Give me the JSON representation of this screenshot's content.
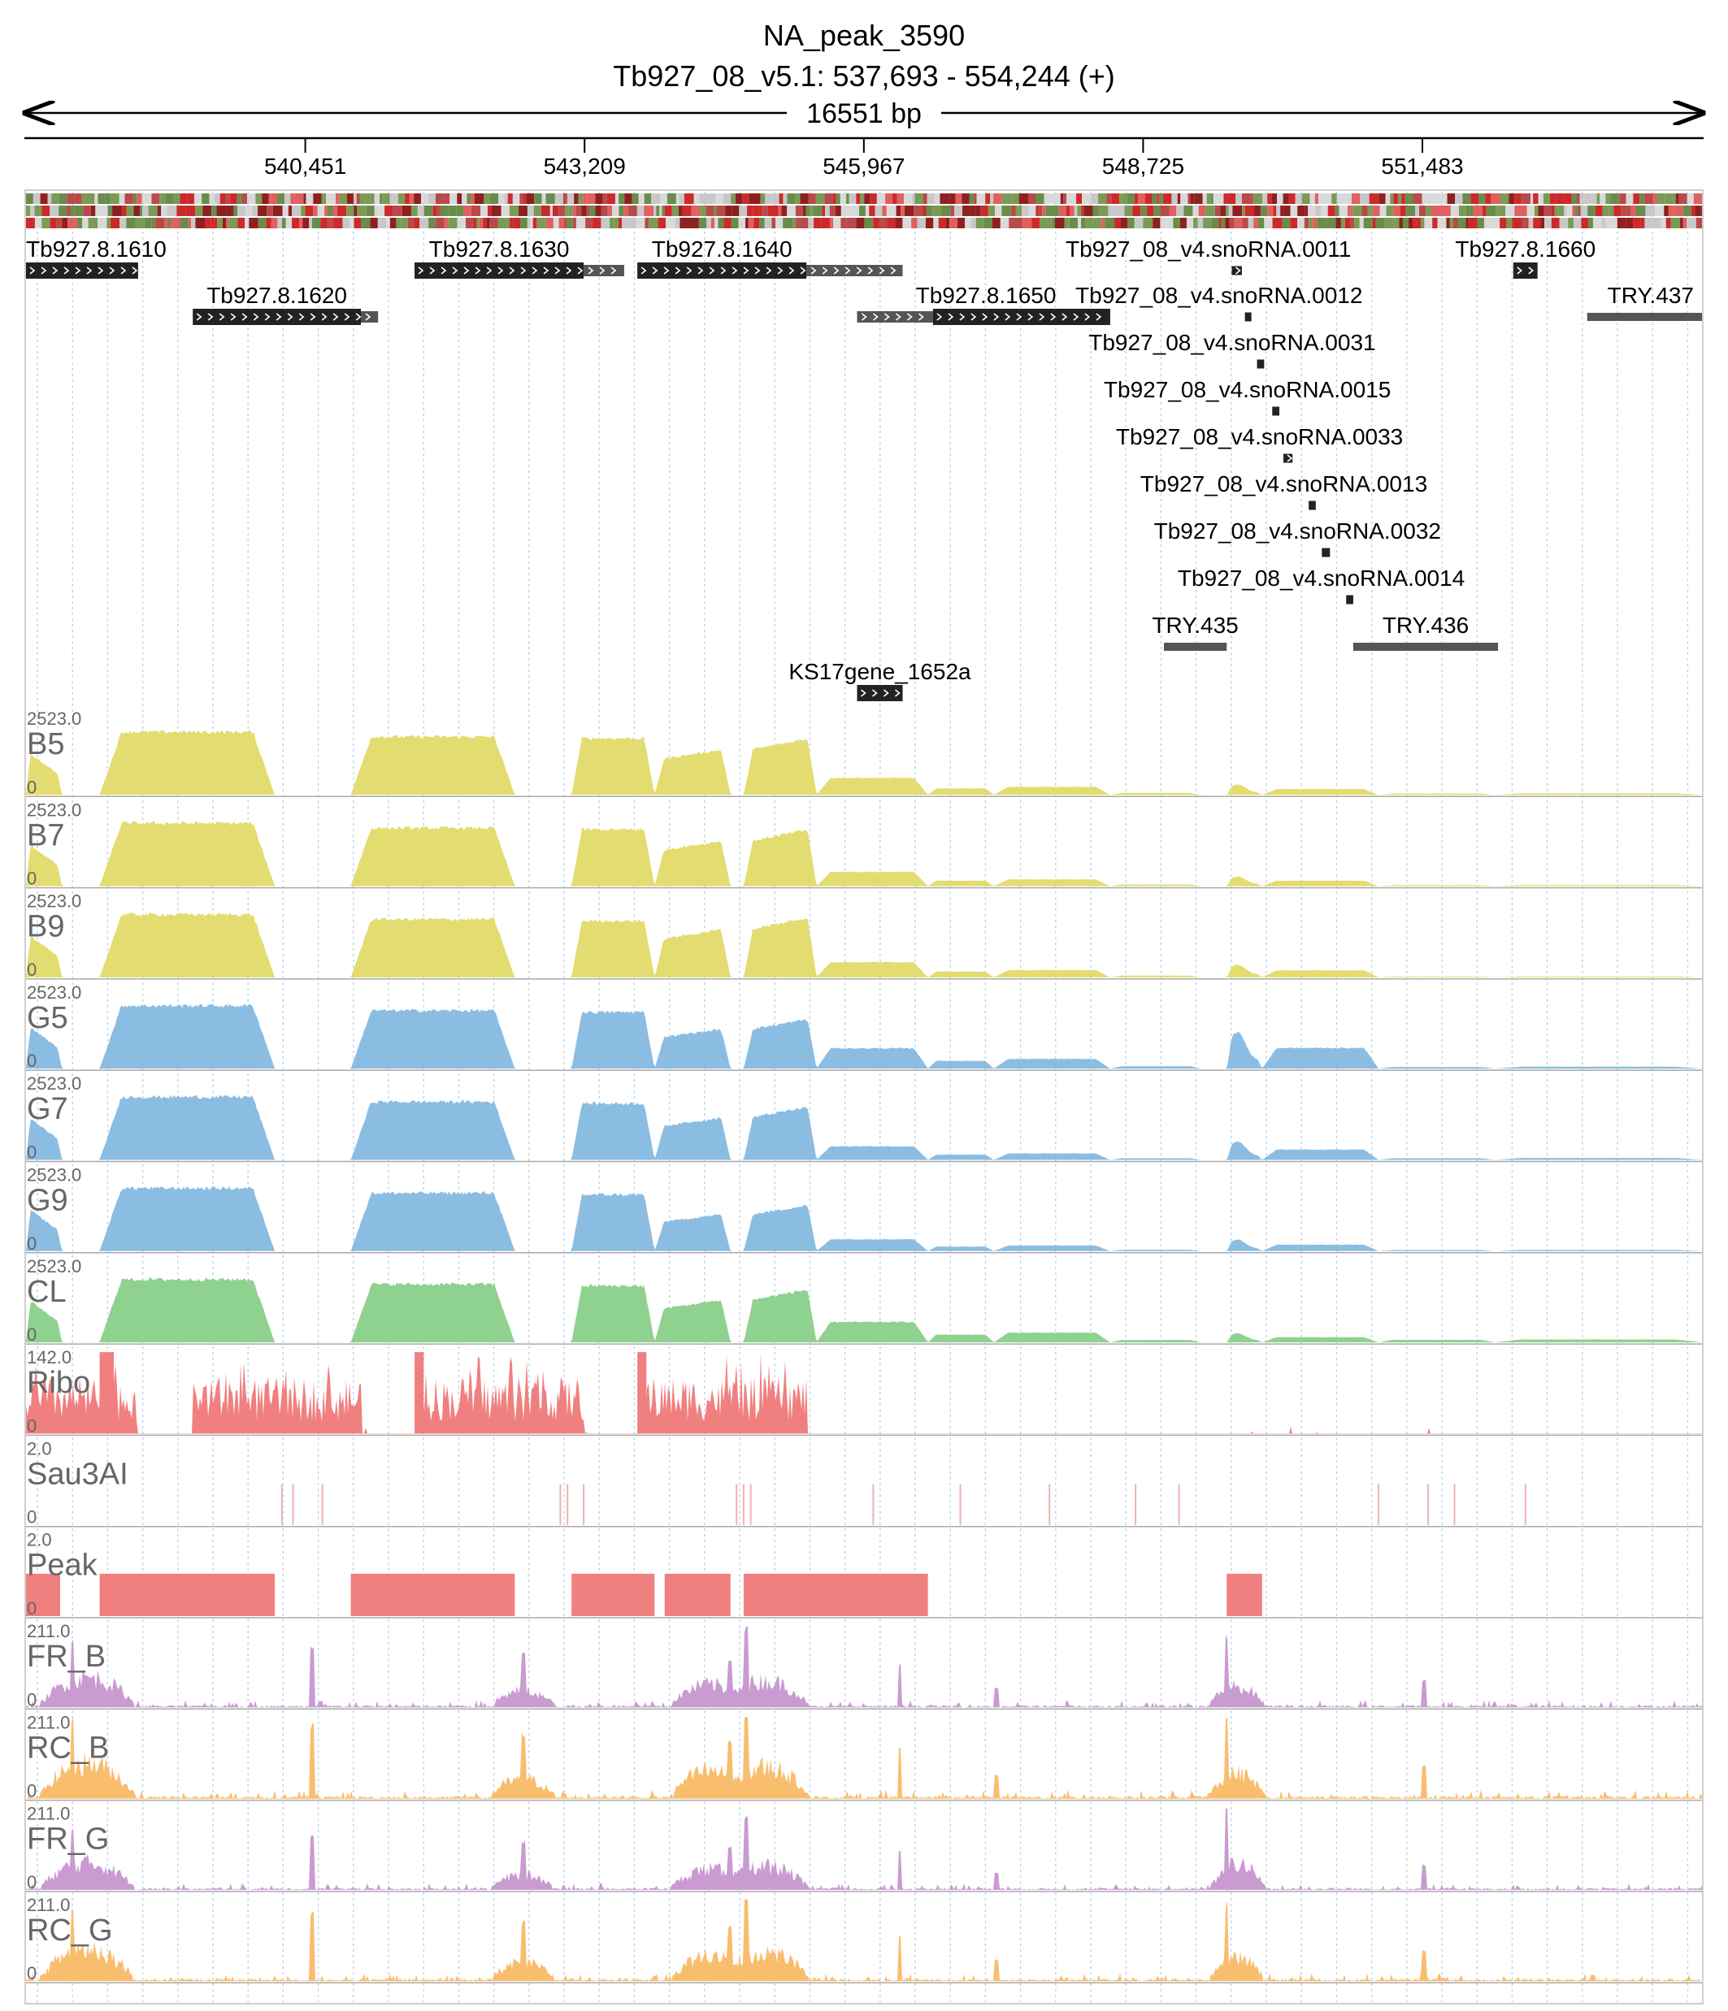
{
  "header": {
    "title": "NA_peak_3590",
    "location": "Tb927_08_v5.1: 537,693 - 554,244 (+)",
    "span": "16551 bp"
  },
  "region": {
    "start": 537693,
    "end": 554244
  },
  "ruler": {
    "ticks": [
      "540,451",
      "543,209",
      "545,967",
      "548,725",
      "551,483"
    ]
  },
  "colors": {
    "yellow": "#e3dc70",
    "blue": "#8bbde3",
    "green": "#8fd18f",
    "red": "#f08080",
    "purple": "#c99bd1",
    "orange": "#f9bd6e",
    "gene": "#222222",
    "utr": "#555555"
  },
  "genes": [
    {
      "name": "Tb927.8.1610",
      "row": 0,
      "start": 537693,
      "end": 538800,
      "strand": "+",
      "utr": []
    },
    {
      "name": "Tb927.8.1620",
      "row": 1,
      "start": 539340,
      "end": 541000,
      "strand": "+",
      "utr": [
        [
          541000,
          541170
        ]
      ]
    },
    {
      "name": "Tb927.8.1630",
      "row": 0,
      "start": 541530,
      "end": 543200,
      "strand": "+",
      "utr": [
        [
          543200,
          543600
        ]
      ]
    },
    {
      "name": "Tb927.8.1640",
      "row": 0,
      "start": 543730,
      "end": 545400,
      "strand": "+",
      "utr": [
        [
          545400,
          546350
        ]
      ]
    },
    {
      "name": "Tb927.8.1650",
      "row": 1,
      "start": 546650,
      "end": 548400,
      "strand": "+",
      "utr": [
        [
          545900,
          546650
        ]
      ]
    },
    {
      "name": "Tb927_08_v4.snoRNA.0011",
      "row": 0,
      "start": 549600,
      "end": 549700,
      "strand": "+",
      "utr": []
    },
    {
      "name": "Tb927.8.1660",
      "row": 0,
      "start": 552380,
      "end": 552620,
      "strand": "+",
      "utr": []
    },
    {
      "name": "Tb927_08_v4.snoRNA.0012",
      "row": 1,
      "start": 549730,
      "end": 549780,
      "strand": "",
      "utr": []
    },
    {
      "name": "TRY.437",
      "row": 1,
      "start": 553110,
      "end": 554244,
      "strand": "",
      "utr": []
    },
    {
      "name": "Tb927_08_v4.snoRNA.0031",
      "row": 2,
      "start": 549850,
      "end": 549920,
      "strand": "+",
      "utr": []
    },
    {
      "name": "Tb927_08_v4.snoRNA.0015",
      "row": 3,
      "start": 550000,
      "end": 550070,
      "strand": "",
      "utr": []
    },
    {
      "name": "Tb927_08_v4.snoRNA.0033",
      "row": 4,
      "start": 550110,
      "end": 550200,
      "strand": "+",
      "utr": []
    },
    {
      "name": "Tb927_08_v4.snoRNA.0013",
      "row": 5,
      "start": 550360,
      "end": 550430,
      "strand": "+",
      "utr": []
    },
    {
      "name": "Tb927_08_v4.snoRNA.0032",
      "row": 6,
      "start": 550490,
      "end": 550570,
      "strand": "+",
      "utr": []
    },
    {
      "name": "Tb927_08_v4.snoRNA.0014",
      "row": 7,
      "start": 550730,
      "end": 550800,
      "strand": "",
      "utr": []
    },
    {
      "name": "TRY.435",
      "row": 8,
      "start": 548930,
      "end": 549550,
      "strand": "",
      "utr": []
    },
    {
      "name": "TRY.436",
      "row": 8,
      "start": 550800,
      "end": 552230,
      "strand": "",
      "utr": []
    },
    {
      "name": "KS17gene_1652a",
      "row": 9,
      "start": 545900,
      "end": 546350,
      "strand": "+",
      "utr": []
    }
  ],
  "tracks": [
    {
      "name": "B5",
      "max": "2523.0",
      "min": "0",
      "color": "yellow",
      "profile": "rna",
      "mod": [
        1,
        0.8,
        0.75,
        0.5,
        0.45,
        0.25
      ]
    },
    {
      "name": "B7",
      "max": "2523.0",
      "min": "0",
      "color": "yellow",
      "profile": "rna",
      "mod": [
        1,
        0.8,
        0.7,
        0.42,
        0.42,
        0.18
      ]
    },
    {
      "name": "B9",
      "max": "2523.0",
      "min": "0",
      "color": "yellow",
      "profile": "rna",
      "mod": [
        1,
        0.85,
        0.78,
        0.45,
        0.55,
        0.15
      ]
    },
    {
      "name": "G5",
      "max": "2523.0",
      "min": "0",
      "color": "blue",
      "profile": "rna",
      "mod": [
        1,
        0.7,
        0.72,
        0.6,
        1.6,
        0.3
      ]
    },
    {
      "name": "G7",
      "max": "2523.0",
      "min": "0",
      "color": "blue",
      "profile": "rna",
      "mod": [
        1,
        0.75,
        0.7,
        0.4,
        0.8,
        0.3
      ]
    },
    {
      "name": "G9",
      "max": "2523.0",
      "min": "0",
      "color": "blue",
      "profile": "rna",
      "mod": [
        1,
        0.65,
        0.6,
        0.35,
        0.5,
        0.2
      ]
    },
    {
      "name": "CL",
      "max": "2523.0",
      "min": "0",
      "color": "green",
      "profile": "rna",
      "mod": [
        1,
        0.75,
        0.72,
        0.6,
        0.4,
        0.45
      ]
    },
    {
      "name": "Ribo",
      "max": "142.0",
      "min": "0",
      "color": "red",
      "profile": "ribo",
      "mod": [
        1,
        1,
        1,
        1,
        1,
        1
      ]
    },
    {
      "name": "Sau3AI",
      "max": "2.0",
      "min": "0",
      "color": "red",
      "profile": "sites",
      "mod": [
        1,
        1,
        1,
        1,
        1,
        1
      ]
    },
    {
      "name": "Peak",
      "max": "2.0",
      "min": "0",
      "color": "red",
      "profile": "peaks",
      "mod": [
        1,
        1,
        1,
        1,
        1,
        1
      ]
    },
    {
      "name": "FR_B",
      "max": "211.0",
      "min": "0",
      "color": "purple",
      "profile": "spiky",
      "mod": [
        1,
        1,
        1,
        1,
        1,
        1
      ]
    },
    {
      "name": "RC_B",
      "max": "211.0",
      "min": "0",
      "color": "orange",
      "profile": "spiky",
      "mod": [
        1.2,
        1,
        1,
        1,
        1,
        1
      ]
    },
    {
      "name": "FR_G",
      "max": "211.0",
      "min": "0",
      "color": "purple",
      "profile": "spiky",
      "mod": [
        0.9,
        1,
        1,
        1,
        1.4,
        1
      ]
    },
    {
      "name": "RC_G",
      "max": "211.0",
      "min": "0",
      "color": "orange",
      "profile": "spiky",
      "mod": [
        1.1,
        1,
        1,
        1,
        1,
        1
      ]
    }
  ],
  "peaks": [
    [
      537693,
      538030
    ],
    [
      538420,
      540150
    ],
    [
      540900,
      542520
    ],
    [
      543080,
      543900
    ],
    [
      544000,
      544650
    ],
    [
      544780,
      546600
    ],
    [
      549550,
      549900
    ]
  ],
  "sau3ai_sites": [
    540220,
    540330,
    540620,
    542970,
    543040,
    543200,
    544710,
    544780,
    544850,
    546060,
    546920,
    547800,
    548650,
    549080,
    551050,
    551540,
    551800,
    552500
  ]
}
